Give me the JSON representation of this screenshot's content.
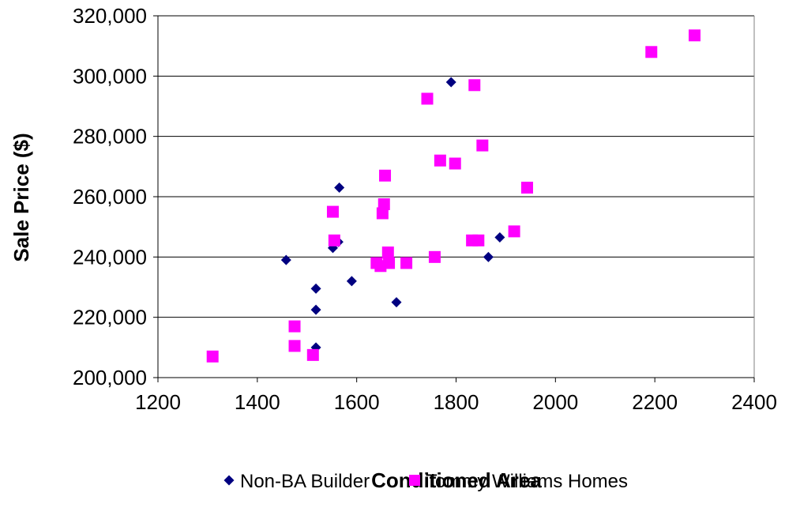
{
  "chart_data": {
    "type": "scatter",
    "title": "",
    "xlabel": "Conditioned Area",
    "ylabel": "Sale Price ($)",
    "xlim": [
      1200,
      2400
    ],
    "ylim": [
      200000,
      320000
    ],
    "x_ticks": [
      1200,
      1400,
      1600,
      1800,
      2000,
      2200,
      2400
    ],
    "x_tick_labels": [
      "1200",
      "1400",
      "1600",
      "1800",
      "2000",
      "2200",
      "2400"
    ],
    "y_ticks": [
      200000,
      220000,
      240000,
      260000,
      280000,
      300000,
      320000
    ],
    "y_tick_labels": [
      "200,000",
      "220,000",
      "240,000",
      "260,000",
      "280,000",
      "300,000",
      "320,000"
    ],
    "grid": "horizontal",
    "legend_position": "bottom",
    "series": [
      {
        "name": "Non-BA Builder",
        "marker": "diamond",
        "color": "#000080",
        "points": [
          {
            "x": 1458,
            "y": 239000
          },
          {
            "x": 1518,
            "y": 229500
          },
          {
            "x": 1518,
            "y": 222500
          },
          {
            "x": 1518,
            "y": 210000
          },
          {
            "x": 1552,
            "y": 243000
          },
          {
            "x": 1563,
            "y": 245000
          },
          {
            "x": 1565,
            "y": 263000
          },
          {
            "x": 1590,
            "y": 232000
          },
          {
            "x": 1680,
            "y": 225000
          },
          {
            "x": 1790,
            "y": 298000
          },
          {
            "x": 1865,
            "y": 240000
          },
          {
            "x": 1888,
            "y": 246500
          }
        ]
      },
      {
        "name": "Tommy Williams Homes",
        "marker": "square",
        "color": "#ff00ff",
        "points": [
          {
            "x": 1310,
            "y": 207000
          },
          {
            "x": 1475,
            "y": 217000
          },
          {
            "x": 1475,
            "y": 210500
          },
          {
            "x": 1512,
            "y": 207500
          },
          {
            "x": 1552,
            "y": 255000
          },
          {
            "x": 1555,
            "y": 245500
          },
          {
            "x": 1640,
            "y": 238000
          },
          {
            "x": 1648,
            "y": 237000
          },
          {
            "x": 1652,
            "y": 254500
          },
          {
            "x": 1655,
            "y": 257500
          },
          {
            "x": 1657,
            "y": 267000
          },
          {
            "x": 1663,
            "y": 241500
          },
          {
            "x": 1665,
            "y": 238000
          },
          {
            "x": 1700,
            "y": 238000
          },
          {
            "x": 1742,
            "y": 292500
          },
          {
            "x": 1757,
            "y": 240000
          },
          {
            "x": 1768,
            "y": 272000
          },
          {
            "x": 1798,
            "y": 271000
          },
          {
            "x": 1832,
            "y": 245500
          },
          {
            "x": 1837,
            "y": 297000
          },
          {
            "x": 1845,
            "y": 245500
          },
          {
            "x": 1853,
            "y": 277000
          },
          {
            "x": 1917,
            "y": 248500
          },
          {
            "x": 1943,
            "y": 263000
          },
          {
            "x": 2193,
            "y": 308000
          },
          {
            "x": 2280,
            "y": 313500
          }
        ]
      }
    ]
  }
}
